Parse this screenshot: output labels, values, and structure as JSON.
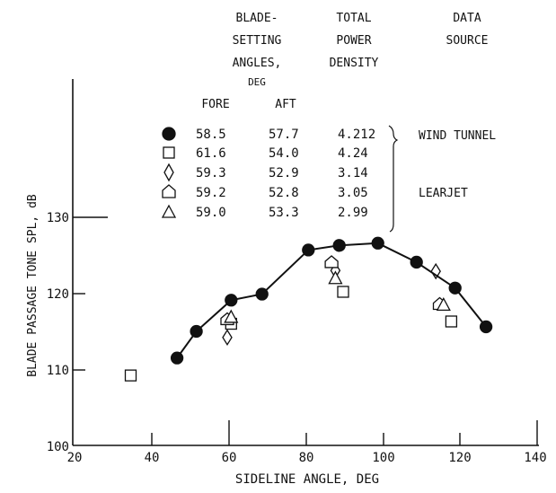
{
  "chart_data": {
    "type": "scatter",
    "xlabel": "SIDELINE ANGLE, DEG",
    "ylabel": "BLADE PASSAGE TONE SPL, dB",
    "xlim": [
      20,
      140
    ],
    "ylim": [
      100,
      130
    ],
    "xticks": [
      "20",
      "40",
      "60",
      "80",
      "100",
      "120",
      "140"
    ],
    "yticks": [
      "100",
      "110",
      "120",
      "130"
    ],
    "legend": {
      "headers": {
        "blade_setting": [
          "BLADE-",
          "SETTING",
          "ANGLES,",
          "DEG"
        ],
        "total_power": [
          "TOTAL",
          "POWER",
          "DENSITY"
        ],
        "data_source": [
          "DATA",
          "SOURCE"
        ],
        "fore": "FORE",
        "aft": "AFT"
      },
      "rows": [
        {
          "marker": "filled-circle",
          "fore": "58.5",
          "aft": "57.7",
          "power": "4.212"
        },
        {
          "marker": "square",
          "fore": "61.6",
          "aft": "54.0",
          "power": "4.24"
        },
        {
          "marker": "diamond",
          "fore": "59.3",
          "aft": "52.9",
          "power": "3.14"
        },
        {
          "marker": "pentagon",
          "fore": "59.2",
          "aft": "52.8",
          "power": "3.05"
        },
        {
          "marker": "triangle",
          "fore": "59.0",
          "aft": "53.3",
          "power": "2.99"
        }
      ],
      "sources": [
        "WIND TUNNEL",
        "LEARJET"
      ]
    },
    "series": [
      {
        "marker": "filled-circle",
        "line": true,
        "points": [
          [
            47,
            111.5
          ],
          [
            52,
            115.0
          ],
          [
            61,
            119.1
          ],
          [
            69,
            119.9
          ],
          [
            81,
            125.7
          ],
          [
            89,
            126.3
          ],
          [
            99,
            126.6
          ],
          [
            109,
            124.1
          ],
          [
            119,
            120.7
          ],
          [
            127,
            115.6
          ]
        ]
      },
      {
        "marker": "square",
        "points": [
          [
            35,
            109.2
          ],
          [
            61,
            116.0
          ],
          [
            90,
            120.2
          ],
          [
            118,
            116.3
          ]
        ]
      },
      {
        "marker": "diamond",
        "points": [
          [
            60,
            114.2
          ],
          [
            88,
            123.0
          ],
          [
            114,
            122.9
          ]
        ]
      },
      {
        "marker": "pentagon",
        "points": [
          [
            60,
            116.6
          ],
          [
            87,
            124.1
          ],
          [
            115,
            118.6
          ]
        ]
      },
      {
        "marker": "triangle",
        "points": [
          [
            61,
            116.9
          ],
          [
            88,
            122.0
          ],
          [
            116,
            118.5
          ]
        ]
      }
    ]
  }
}
